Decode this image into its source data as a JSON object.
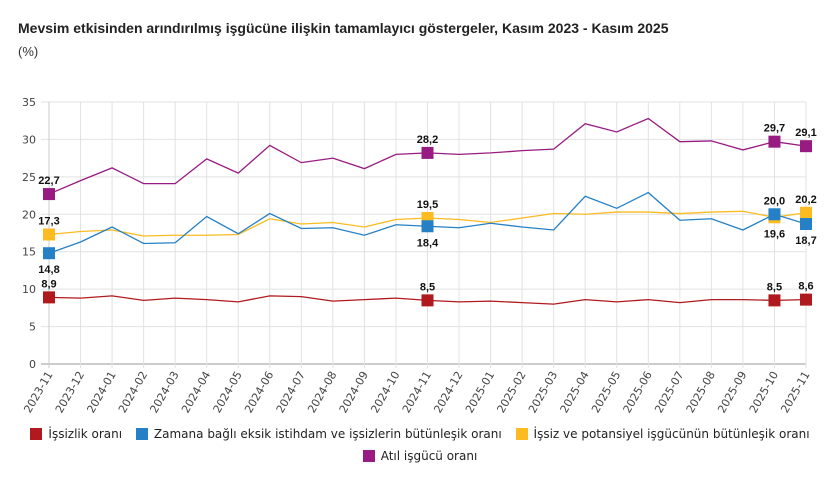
{
  "title": "Mevsim etkisinden arındırılmış işgücüne ilişkin tamamlayıcı göstergeler, Kasım 2023 - Kasım 2025",
  "unit": "(%)",
  "chart_data": {
    "type": "line",
    "title": "Mevsim etkisinden arındırılmış işgücüne ilişkin tamamlayıcı göstergeler, Kasım 2023 - Kasım 2025",
    "ylabel": "(%)",
    "ylim": [
      0,
      35
    ],
    "yticks": [
      0,
      5,
      10,
      15,
      20,
      25,
      30,
      35
    ],
    "grid": true,
    "legend": "bottom",
    "categories": [
      "2023-11",
      "2023-12",
      "2024-01",
      "2024-02",
      "2024-03",
      "2024-04",
      "2024-05",
      "2024-06",
      "2024-07",
      "2024-08",
      "2024-09",
      "2024-10",
      "2024-11",
      "2024-12",
      "2025-01",
      "2025-02",
      "2025-03",
      "2025-04",
      "2025-05",
      "2025-06",
      "2025-07",
      "2025-08",
      "2025-09",
      "2025-10",
      "2025-11"
    ],
    "labeled_points": [
      0,
      12,
      23,
      24
    ],
    "series": [
      {
        "name": "İşsizlik oranı",
        "color": "#b0191e",
        "values": [
          8.9,
          8.8,
          9.1,
          8.5,
          8.8,
          8.6,
          8.3,
          9.1,
          9.0,
          8.4,
          8.6,
          8.8,
          8.5,
          8.3,
          8.4,
          8.2,
          8.0,
          8.6,
          8.3,
          8.6,
          8.2,
          8.6,
          8.6,
          8.5,
          8.6
        ]
      },
      {
        "name": "İşsiz ve potansiyel işgücünün bütünleşik oranı",
        "color": "#fbbb21",
        "values": [
          17.3,
          17.7,
          17.9,
          17.1,
          17.2,
          17.2,
          17.3,
          19.4,
          18.7,
          18.9,
          18.3,
          19.3,
          19.5,
          19.3,
          18.9,
          19.5,
          20.1,
          20.0,
          20.3,
          20.3,
          20.1,
          20.3,
          20.4,
          19.6,
          20.2
        ]
      },
      {
        "name": "Zamana bağlı eksik istihdam ve işsizlerin bütünleşik oranı",
        "color": "#2580c6",
        "values": [
          14.8,
          16.3,
          18.3,
          16.1,
          16.2,
          19.7,
          17.4,
          20.1,
          18.1,
          18.2,
          17.2,
          18.6,
          18.4,
          18.2,
          18.8,
          18.3,
          17.9,
          22.4,
          20.8,
          22.9,
          19.2,
          19.4,
          17.9,
          20.0,
          18.7
        ]
      },
      {
        "name": "Atıl işgücü oranı",
        "color": "#971b81",
        "values": [
          22.7,
          24.5,
          26.2,
          24.1,
          24.1,
          27.4,
          25.5,
          29.2,
          26.9,
          27.5,
          26.1,
          28.0,
          28.2,
          28.0,
          28.2,
          28.5,
          28.7,
          32.1,
          31.0,
          32.8,
          29.7,
          29.8,
          28.6,
          29.7,
          29.1
        ]
      }
    ]
  },
  "legend": [
    {
      "label": "İşsizlik oranı",
      "color": "#b0191e"
    },
    {
      "label": "Zamana bağlı eksik istihdam ve işsizlerin bütünleşik oranı",
      "color": "#2580c6"
    },
    {
      "label": "İşsiz ve potansiyel işgücünün bütünleşik oranı",
      "color": "#fbbb21"
    },
    {
      "label": "Atıl işgücü oranı",
      "color": "#971b81"
    }
  ]
}
